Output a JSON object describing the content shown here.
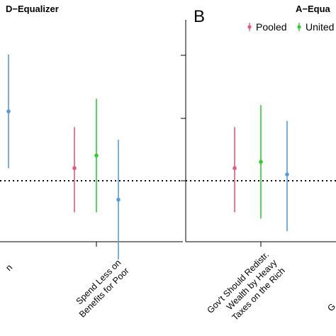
{
  "chart_data": [
    {
      "type": "scatter",
      "panel": "",
      "title": "D−Equalizer",
      "series_colors": [
        "#5b9bd5",
        "#e05c7a",
        "#2ecc2e",
        "#5b9bd5"
      ],
      "items": [
        {
          "category": "",
          "label_lines": [],
          "points": [
            {
              "color": "#5b9bd5",
              "estimate": 0.22,
              "low": 0.04,
              "high": 0.4
            }
          ]
        },
        {
          "category": "Gov't Should Not Spend Less on Benefits for Poor",
          "label_lines": [
            "Gov't Should Not",
            "Spend Less on",
            "Benefits for Poor"
          ],
          "points": [
            {
              "color": "#e05c7a",
              "estimate": 0.04,
              "low": -0.1,
              "high": 0.17
            },
            {
              "color": "#2ecc2e",
              "estimate": 0.08,
              "low": -0.1,
              "high": 0.26
            },
            {
              "color": "#5b9bd5",
              "estimate": -0.06,
              "low": -0.25,
              "high": 0.13
            }
          ]
        }
      ],
      "reference_line": 0
    },
    {
      "type": "scatter",
      "panel": "B",
      "title": "A−Equa",
      "legend": [
        "Pooled",
        "United"
      ],
      "legend_colors": [
        "#e05c7a",
        "#2ecc2e"
      ],
      "legend_placement": "top-right",
      "items": [
        {
          "category": "Gov't Should Redistr. Wealth by Heavy Taxes on the Rich",
          "label_lines": [
            "Gov't Should Redistr.",
            "Wealth by Heavy",
            "Taxes on the Rich"
          ],
          "points": [
            {
              "color": "#e05c7a",
              "estimate": 0.04,
              "low": -0.1,
              "high": 0.17
            },
            {
              "color": "#2ecc2e",
              "estimate": 0.06,
              "low": -0.12,
              "high": 0.24
            },
            {
              "color": "#5b9bd5",
              "estimate": 0.02,
              "low": -0.16,
              "high": 0.19
            }
          ]
        }
      ],
      "reference_line": 0
    }
  ],
  "left_partial_label": "n",
  "right_partial_label": "G"
}
